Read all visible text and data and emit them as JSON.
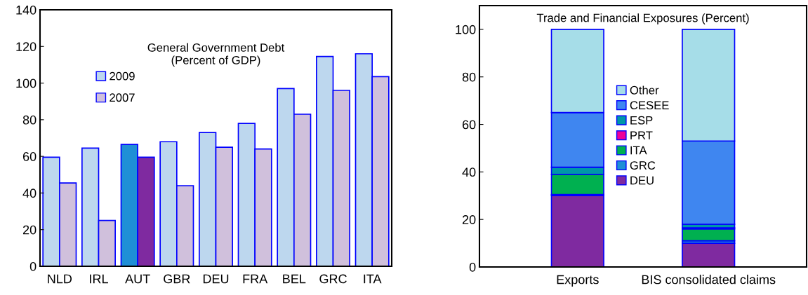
{
  "chart_data": [
    {
      "type": "bar",
      "title": "General Government Debt\n(Percent of GDP)",
      "categories": [
        "NLD",
        "IRL",
        "AUT",
        "GBR",
        "DEU",
        "FRA",
        "BEL",
        "GRC",
        "ITA"
      ],
      "series": [
        {
          "name": "2009",
          "color": "#bdd7ee",
          "colors": [
            "#bdd7ee",
            "#bdd7ee",
            "#1f8fd6",
            "#bdd7ee",
            "#bdd7ee",
            "#bdd7ee",
            "#bdd7ee",
            "#bdd7ee",
            "#bdd7ee"
          ],
          "values": [
            59.5,
            64.5,
            66.5,
            68,
            73,
            78,
            97,
            114.5,
            116
          ]
        },
        {
          "name": "2007",
          "color": "#d0c0dc",
          "colors": [
            "#d0c0dc",
            "#d0c0dc",
            "#7f2aa0",
            "#d0c0dc",
            "#d0c0dc",
            "#d0c0dc",
            "#d0c0dc",
            "#d0c0dc",
            "#d0c0dc"
          ],
          "values": [
            45.5,
            25,
            59.5,
            44,
            65,
            64,
            83,
            96,
            103.5
          ]
        }
      ],
      "ylim": [
        0,
        140
      ],
      "yticks": [
        0,
        20,
        40,
        60,
        80,
        100,
        120,
        140
      ],
      "grid": false,
      "legend": "top left"
    },
    {
      "type": "bar",
      "title": "Trade and Financial Exposures (Percent)",
      "categories": [
        "Exports",
        "BIS consolidated claims"
      ],
      "stacked": true,
      "series": [
        {
          "name": "DEU",
          "color": "#7f2aa0",
          "values": [
            30,
            10
          ]
        },
        {
          "name": "GRC",
          "color": "#1f8fd6",
          "values": [
            0.5,
            1
          ]
        },
        {
          "name": "ITA",
          "color": "#00b050",
          "values": [
            8.5,
            5
          ]
        },
        {
          "name": "PRT",
          "color": "#ee0099",
          "values": [
            null,
            0.5
          ]
        },
        {
          "name": "ESP",
          "color": "#0097a7",
          "values": [
            3,
            1.5
          ]
        },
        {
          "name": "CESEE",
          "color": "#3f86f0",
          "values": [
            23,
            35
          ]
        },
        {
          "name": "Other",
          "color": "#a6dde8",
          "values": [
            35,
            47
          ]
        }
      ],
      "ylim": [
        0,
        110
      ],
      "yticks": [
        0,
        20,
        40,
        60,
        80,
        100
      ],
      "grid": false,
      "legend": "center"
    }
  ]
}
